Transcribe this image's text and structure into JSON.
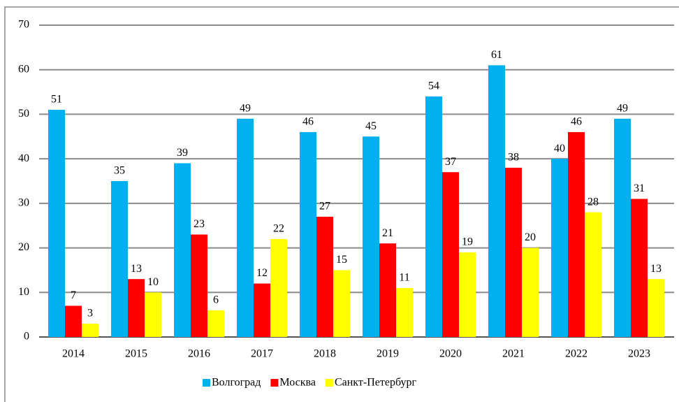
{
  "chart_data": {
    "type": "bar",
    "categories": [
      "2014",
      "2015",
      "2016",
      "2017",
      "2018",
      "2019",
      "2020",
      "2021",
      "2022",
      "2023"
    ],
    "series": [
      {
        "name": "Волгоград",
        "color": "#00b0f0",
        "values": [
          51,
          35,
          39,
          49,
          46,
          45,
          54,
          61,
          40,
          49
        ]
      },
      {
        "name": "Москва",
        "color": "#ff0000",
        "values": [
          7,
          13,
          23,
          12,
          27,
          21,
          37,
          38,
          46,
          31
        ]
      },
      {
        "name": "Санкт-Петербург",
        "color": "#ffff00",
        "values": [
          3,
          10,
          6,
          22,
          15,
          11,
          19,
          20,
          28,
          13
        ]
      }
    ],
    "ylim": [
      0,
      70
    ],
    "yticks": [
      0,
      10,
      20,
      30,
      40,
      50,
      60,
      70
    ],
    "grid": true,
    "legend": "bottom"
  }
}
